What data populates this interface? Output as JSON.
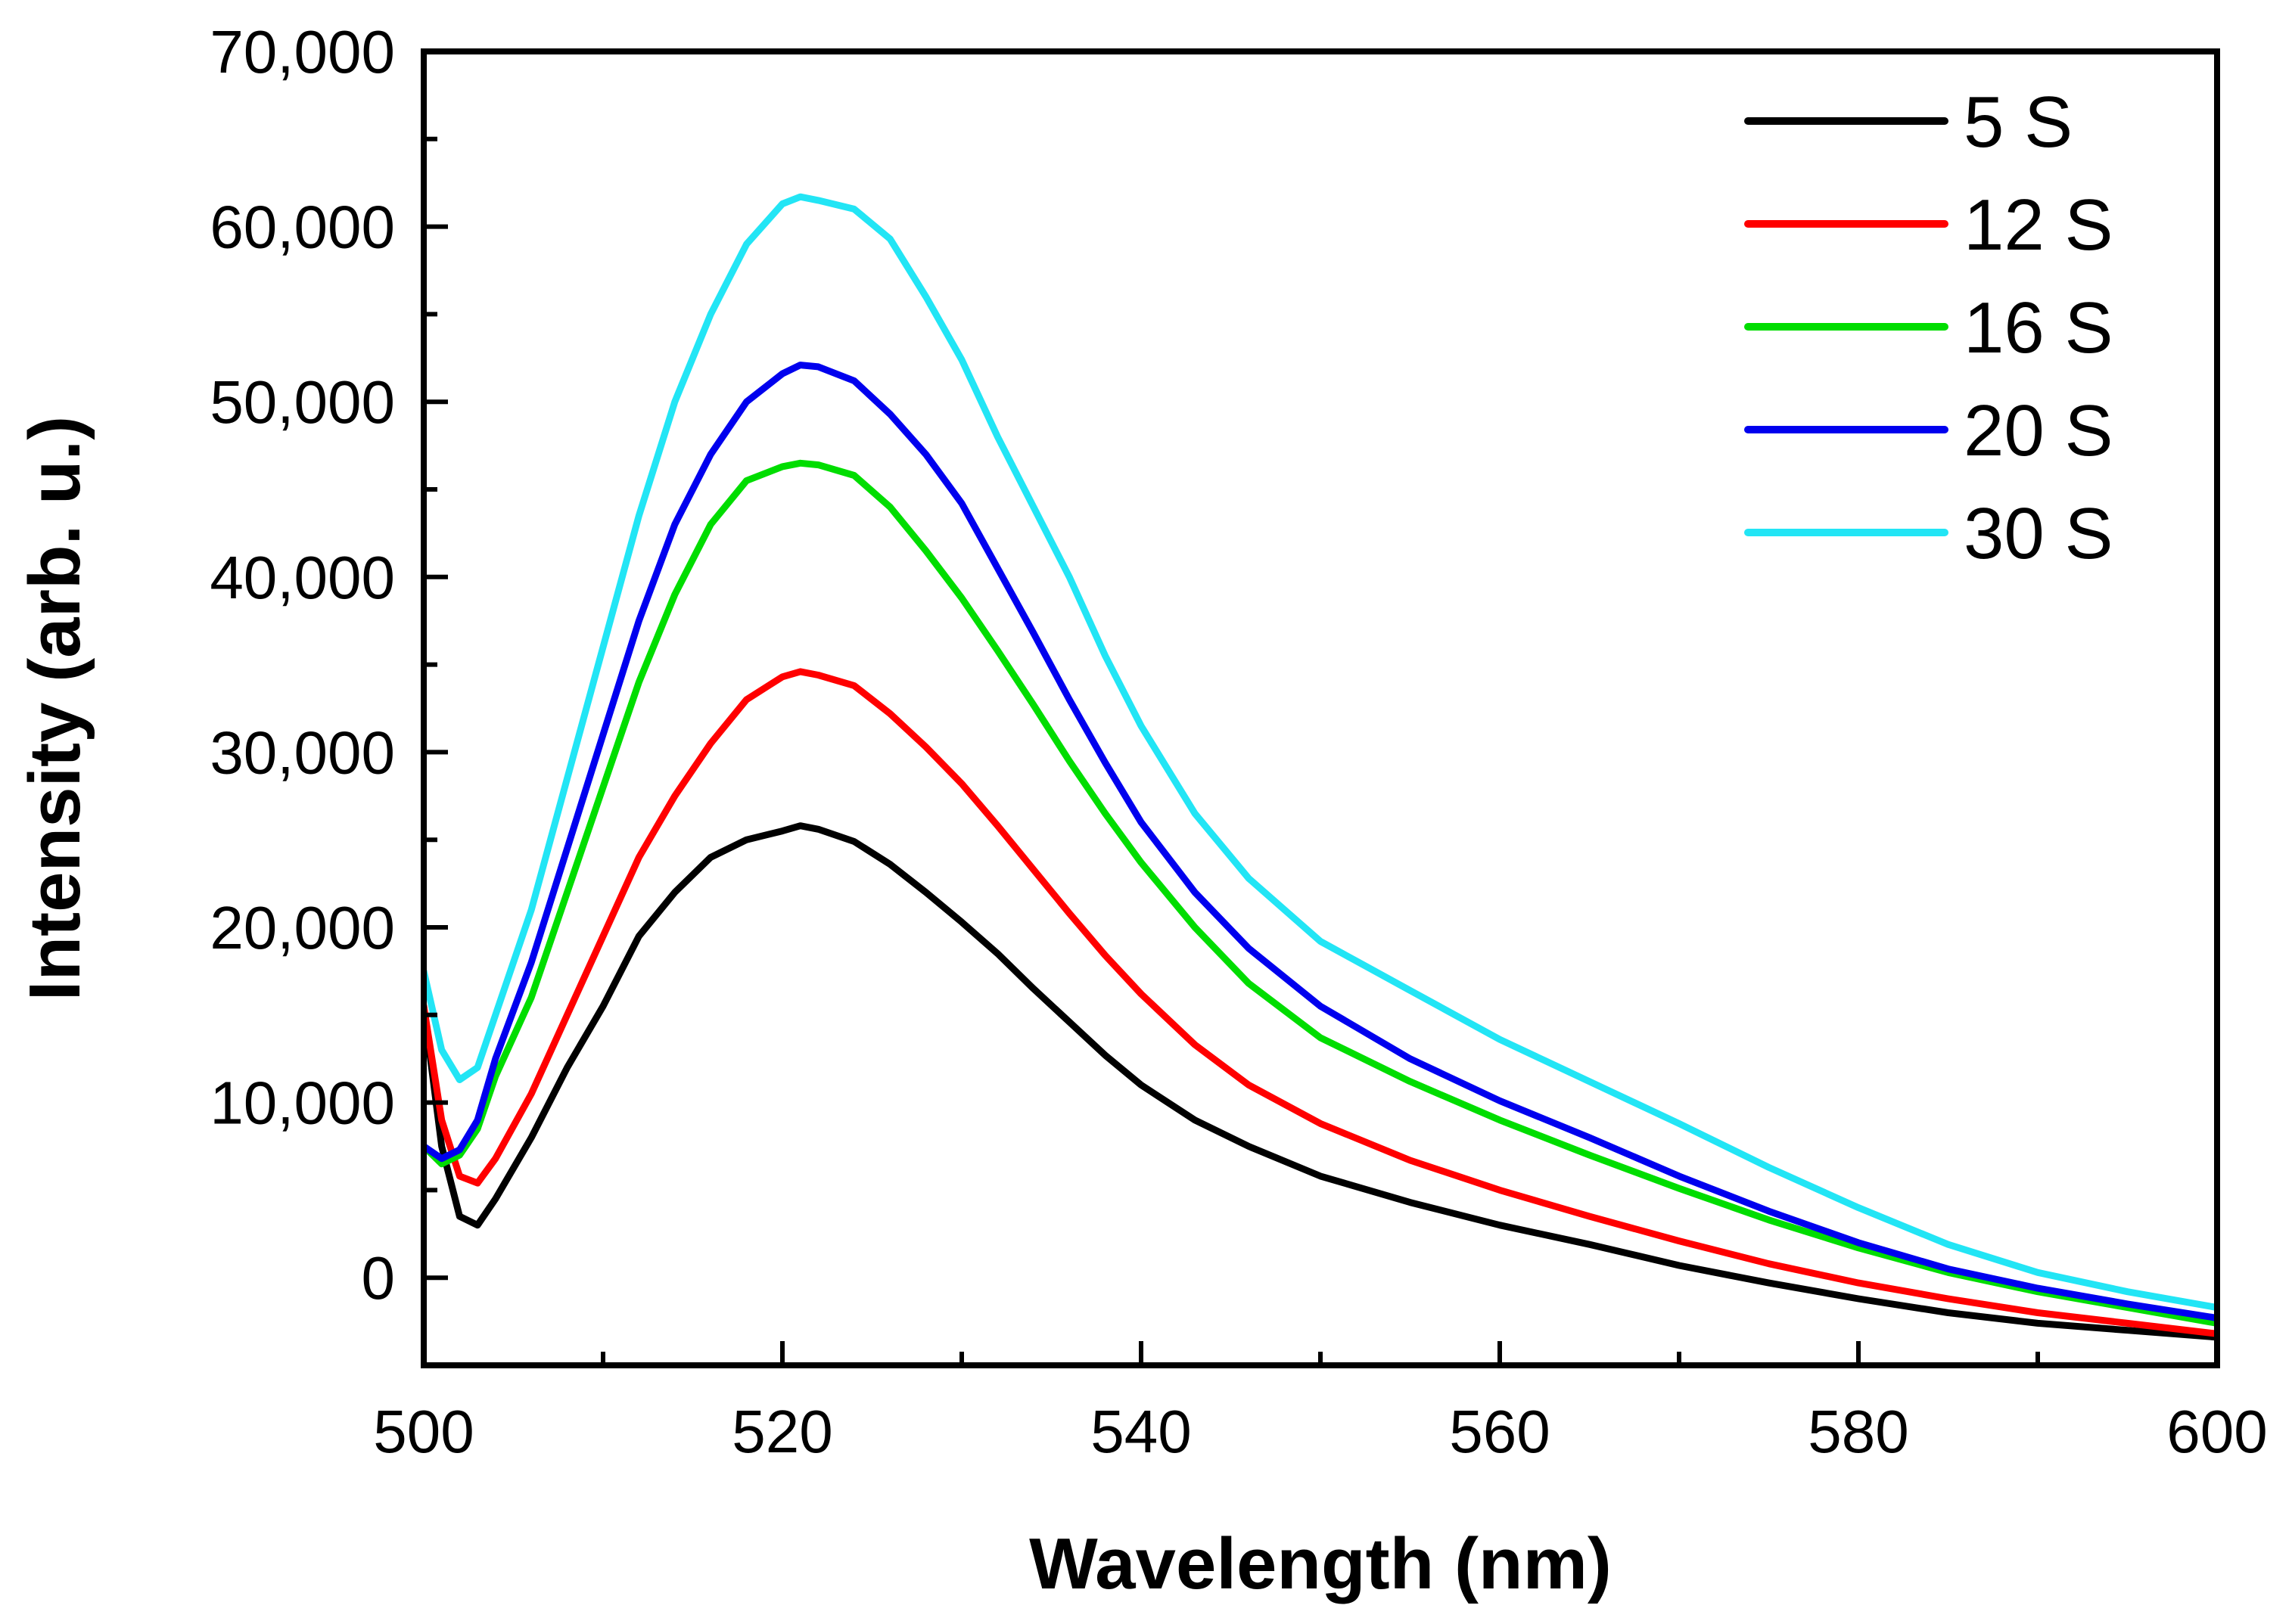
{
  "chart_data": {
    "type": "line",
    "title": "",
    "xlabel": "Wavelength (nm)",
    "ylabel": "Intensity (arb. u.)",
    "xlim": [
      500,
      600
    ],
    "ylim": [
      -5000,
      70000
    ],
    "xticks": [
      500,
      520,
      540,
      560,
      580,
      600
    ],
    "xtick_labels": [
      "500",
      "520",
      "540",
      "560",
      "580",
      "600"
    ],
    "yticks": [
      0,
      10000,
      20000,
      30000,
      40000,
      50000,
      60000,
      70000
    ],
    "ytick_labels": [
      "0",
      "10,000",
      "20,000",
      "30,000",
      "40,000",
      "50,000",
      "60,000",
      "70,000"
    ],
    "grid": false,
    "legend_position": "top-right",
    "x": [
      500,
      501,
      502,
      503,
      504,
      506,
      508,
      510,
      512,
      514,
      516,
      518,
      520,
      521,
      522,
      524,
      526,
      528,
      530,
      532,
      534,
      536,
      538,
      540,
      543,
      546,
      550,
      555,
      560,
      565,
      570,
      575,
      580,
      585,
      590,
      595,
      600
    ],
    "series": [
      {
        "name": "5 S",
        "color": "#000000",
        "values": [
          15500,
          7500,
          3500,
          3000,
          4500,
          8000,
          12000,
          15500,
          19500,
          22000,
          24000,
          25000,
          25500,
          25800,
          25600,
          24900,
          23600,
          22000,
          20300,
          18500,
          16500,
          14600,
          12700,
          11000,
          9000,
          7500,
          5800,
          4300,
          3000,
          1900,
          700,
          -300,
          -1200,
          -2000,
          -2600,
          -3000,
          -3400
        ]
      },
      {
        "name": "12 S",
        "color": "#ff0000",
        "values": [
          15500,
          9000,
          5800,
          5400,
          6800,
          10500,
          15000,
          19500,
          24000,
          27500,
          30500,
          33000,
          34300,
          34600,
          34400,
          33800,
          32200,
          30300,
          28200,
          25800,
          23300,
          20800,
          18400,
          16200,
          13300,
          11000,
          8800,
          6700,
          5000,
          3500,
          2100,
          800,
          -300,
          -1200,
          -2000,
          -2600,
          -3200
        ]
      },
      {
        "name": "16 S",
        "color": "#00dd00",
        "values": [
          7500,
          6500,
          7000,
          8500,
          11500,
          16000,
          22000,
          28000,
          34000,
          39000,
          43000,
          45500,
          46300,
          46500,
          46400,
          45800,
          44000,
          41500,
          38800,
          35800,
          32700,
          29500,
          26500,
          23700,
          20000,
          16800,
          13700,
          11200,
          9000,
          7000,
          5100,
          3300,
          1700,
          300,
          -800,
          -1700,
          -2600
        ]
      },
      {
        "name": "20 S",
        "color": "#0000ee",
        "values": [
          7500,
          6800,
          7300,
          9000,
          12500,
          18000,
          24500,
          31000,
          37500,
          43000,
          47000,
          50000,
          51600,
          52100,
          52000,
          51200,
          49300,
          47000,
          44200,
          40500,
          36800,
          33000,
          29400,
          26000,
          22000,
          18800,
          15500,
          12500,
          10100,
          8000,
          5800,
          3800,
          2000,
          500,
          -600,
          -1500,
          -2300
        ]
      },
      {
        "name": "30 S",
        "color": "#22e5f5",
        "values": [
          17500,
          13000,
          11300,
          12000,
          15000,
          21000,
          28500,
          36000,
          43500,
          50000,
          55000,
          59000,
          61300,
          61700,
          61500,
          61000,
          59300,
          56000,
          52400,
          48000,
          44000,
          40000,
          35500,
          31500,
          26500,
          22800,
          19200,
          16400,
          13600,
          11200,
          8800,
          6300,
          4000,
          1900,
          300,
          -800,
          -1700
        ]
      }
    ]
  }
}
